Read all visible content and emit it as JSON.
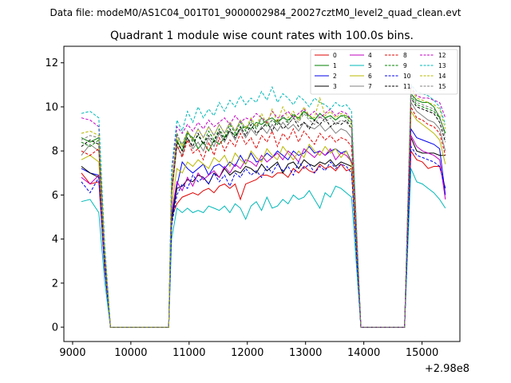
{
  "chart_data": {
    "type": "line",
    "suptitle": "Data file: modeM0/AS1C04_001T01_9000002984_20027cztM0_level2_quad_clean.evt",
    "title": "Quadrant 1 module wise count rates with 100.0s bins.",
    "xlabel": "",
    "ylabel": "",
    "xlim": [
      8850,
      15650
    ],
    "ylim": [
      -0.65,
      12.75
    ],
    "x_offset_label": "+2.98e8",
    "x_ticks": [
      9000,
      10000,
      11000,
      12000,
      13000,
      14000,
      15000
    ],
    "x_tick_labels": [
      "9000",
      "10000",
      "11000",
      "12000",
      "13000",
      "14000",
      "15000"
    ],
    "y_ticks": [
      0,
      2,
      4,
      6,
      8,
      10,
      12
    ],
    "y_tick_labels": [
      "0",
      "2",
      "4",
      "6",
      "8",
      "10",
      "12"
    ],
    "legend_position": "top-right",
    "segments": [
      {
        "start": 9150,
        "end": 9550,
        "rise_to": null
      },
      {
        "start": 10700,
        "end": 13850,
        "rise_to": null
      },
      {
        "start": 14750,
        "end": 15400,
        "rise_to": null
      }
    ],
    "gaps": [
      [
        9650,
        10650
      ],
      [
        13950,
        14700
      ]
    ],
    "series": [
      {
        "name": "0",
        "color": "#e00000",
        "dash": "solid",
        "seg1": [
          7.0,
          6.5,
          6.6
        ],
        "seg2": [
          5.0,
          5.6,
          5.9,
          6.0,
          6.1,
          6.0,
          6.2,
          6.3,
          6.1,
          6.4,
          6.5,
          6.3,
          6.5,
          5.8,
          6.5,
          6.6,
          6.7,
          6.9,
          6.9,
          6.8,
          7.0,
          7.0,
          6.8,
          7.2,
          7.0,
          7.3,
          7.1,
          7.0,
          7.4,
          7.2,
          7.3,
          7.1,
          7.4,
          7.1,
          7.2
        ],
        "seg3": [
          8.0,
          7.6,
          7.5,
          7.2,
          7.3,
          7.3,
          6.3
        ]
      },
      {
        "name": "1",
        "color": "#008000",
        "dash": "solid",
        "seg1": [
          8.6,
          8.4,
          8.6
        ],
        "seg2": [
          6.5,
          8.5,
          8.0,
          8.8,
          8.6,
          8.1,
          8.4,
          8.0,
          8.5,
          8.3,
          8.6,
          8.9,
          8.7,
          9.0,
          9.1,
          9.0,
          9.3,
          9.2,
          9.4,
          9.5,
          9.3,
          9.5,
          9.4,
          9.6,
          9.5,
          9.8,
          9.6,
          9.4,
          9.7,
          9.5,
          9.6,
          9.4,
          9.6,
          9.6,
          9.4
        ],
        "seg3": [
          10.6,
          10.3,
          10.2,
          10.2,
          10.0,
          9.5,
          8.8
        ]
      },
      {
        "name": "2",
        "color": "#0000ee",
        "dash": "solid",
        "seg1": [
          7.2,
          7.0,
          6.9
        ],
        "seg2": [
          5.0,
          6.4,
          7.5,
          7.2,
          7.0,
          7.2,
          7.4,
          6.9,
          7.3,
          7.4,
          7.2,
          7.5,
          7.3,
          7.8,
          7.4,
          7.9,
          7.5,
          7.6,
          7.9,
          7.7,
          8.0,
          7.8,
          7.6,
          8.0,
          7.8,
          7.9,
          8.2,
          7.9,
          8.0,
          7.8,
          8.0,
          8.1,
          7.9,
          8.0,
          7.5
        ],
        "seg3": [
          9.0,
          8.6,
          8.5,
          8.4,
          8.3,
          8.1,
          6.0
        ]
      },
      {
        "name": "3",
        "color": "#000000",
        "dash": "solid",
        "seg1": [
          7.3,
          7.0,
          6.8
        ],
        "seg2": [
          4.8,
          6.3,
          6.4,
          6.7,
          6.6,
          6.9,
          6.8,
          6.5,
          7.0,
          6.8,
          7.2,
          6.9,
          7.1,
          7.0,
          7.3,
          7.2,
          7.0,
          7.4,
          7.1,
          7.3,
          7.5,
          7.0,
          7.4,
          7.5,
          7.2,
          7.6,
          7.4,
          7.3,
          7.5,
          7.4,
          7.6,
          7.3,
          7.5,
          7.4,
          7.3
        ],
        "seg3": [
          8.6,
          8.0,
          7.9,
          7.9,
          7.9,
          7.8,
          7.8
        ]
      },
      {
        "name": "4",
        "color": "#c000c0",
        "dash": "solid",
        "seg1": [
          6.8,
          6.5,
          6.9
        ],
        "seg2": [
          5.2,
          6.6,
          6.2,
          6.8,
          6.4,
          7.0,
          6.7,
          6.9,
          7.1,
          6.8,
          7.3,
          7.0,
          7.4,
          7.2,
          7.6,
          7.5,
          7.3,
          7.8,
          7.5,
          7.7,
          7.9,
          7.6,
          8.0,
          7.8,
          7.5,
          8.1,
          7.9,
          7.7,
          8.0,
          7.8,
          8.1,
          7.6,
          7.9,
          7.8,
          7.5
        ],
        "seg3": [
          8.7,
          8.2,
          8.0,
          7.9,
          7.8,
          7.6,
          5.8
        ]
      },
      {
        "name": "5",
        "color": "#00b8b8",
        "dash": "solid",
        "seg1": [
          5.7,
          5.8,
          5.2
        ],
        "seg2": [
          4.0,
          5.4,
          5.2,
          5.4,
          5.2,
          5.3,
          5.2,
          5.5,
          5.4,
          5.3,
          5.5,
          5.2,
          5.6,
          5.4,
          4.9,
          5.5,
          5.7,
          5.3,
          5.9,
          5.4,
          5.5,
          5.8,
          5.6,
          6.0,
          5.8,
          5.9,
          6.2,
          5.8,
          5.4,
          6.1,
          5.9,
          6.4,
          6.3,
          6.1,
          5.9
        ],
        "seg3": [
          7.2,
          6.6,
          6.5,
          6.3,
          6.1,
          5.8,
          5.4
        ]
      },
      {
        "name": "6",
        "color": "#b8b800",
        "dash": "solid",
        "seg1": [
          7.6,
          7.8,
          7.5
        ],
        "seg2": [
          5.5,
          7.2,
          7.0,
          7.5,
          7.3,
          7.6,
          7.4,
          7.2,
          7.7,
          7.5,
          7.8,
          7.3,
          7.9,
          7.6,
          7.4,
          8.0,
          7.7,
          7.5,
          8.1,
          7.8,
          7.6,
          8.2,
          7.9,
          7.6,
          8.0,
          7.7,
          8.3,
          8.0,
          7.8,
          8.2,
          7.9,
          8.1,
          7.7,
          8.0,
          7.4
        ],
        "seg3": [
          9.8,
          9.4,
          9.2,
          9.0,
          8.8,
          8.5,
          7.4
        ]
      },
      {
        "name": "7",
        "color": "#808080",
        "dash": "solid",
        "seg1": [
          7.8,
          8.3,
          8.0
        ],
        "seg2": [
          6.0,
          8.2,
          7.8,
          8.6,
          8.1,
          8.4,
          8.0,
          8.6,
          8.2,
          8.8,
          8.4,
          8.9,
          8.5,
          9.0,
          8.6,
          9.0,
          8.7,
          9.1,
          8.8,
          9.2,
          8.9,
          9.3,
          9.0,
          9.2,
          8.9,
          9.3,
          9.1,
          9.0,
          9.2,
          8.9,
          9.1,
          8.8,
          9.0,
          8.9,
          8.6
        ],
        "seg3": [
          10.2,
          9.8,
          9.6,
          9.4,
          9.3,
          9.0,
          8.0
        ]
      },
      {
        "name": "8",
        "color": "#e00000",
        "dash": "dashed",
        "seg1": [
          8.0,
          7.8,
          8.1
        ],
        "seg2": [
          6.0,
          8.3,
          7.7,
          8.5,
          7.9,
          8.1,
          7.6,
          8.4,
          7.8,
          8.6,
          8.0,
          8.5,
          8.2,
          8.8,
          8.3,
          8.6,
          8.1,
          8.7,
          8.4,
          8.9,
          8.2,
          8.8,
          8.5,
          9.0,
          8.4,
          8.9,
          8.6,
          8.3,
          8.8,
          8.5,
          8.7,
          8.4,
          8.6,
          8.5,
          8.2
        ],
        "seg3": [
          10.0,
          9.5,
          9.4,
          9.2,
          9.1,
          8.8,
          7.8
        ]
      },
      {
        "name": "9",
        "color": "#008000",
        "dash": "dashed",
        "seg1": [
          8.4,
          8.2,
          8.5
        ],
        "seg2": [
          6.3,
          8.8,
          8.2,
          8.9,
          8.4,
          8.7,
          8.3,
          8.9,
          8.5,
          9.0,
          8.6,
          9.2,
          8.8,
          9.3,
          8.9,
          9.4,
          9.0,
          9.5,
          9.1,
          9.4,
          9.2,
          9.6,
          9.3,
          9.7,
          9.4,
          9.8,
          9.5,
          9.4,
          9.7,
          9.5,
          9.6,
          9.4,
          9.6,
          9.5,
          9.2
        ],
        "seg3": [
          10.5,
          10.1,
          10.0,
          9.9,
          9.8,
          9.5,
          8.8
        ]
      },
      {
        "name": "10",
        "color": "#0000ee",
        "dash": "dashed",
        "seg1": [
          6.6,
          6.1,
          6.8
        ],
        "seg2": [
          4.6,
          6.0,
          6.5,
          6.3,
          6.9,
          6.6,
          6.8,
          6.5,
          7.0,
          6.6,
          6.9,
          6.4,
          7.0,
          6.8,
          7.2,
          6.9,
          7.1,
          6.8,
          7.3,
          7.0,
          7.4,
          7.1,
          7.3,
          6.9,
          7.5,
          7.2,
          7.4,
          7.0,
          7.3,
          7.1,
          7.5,
          7.2,
          7.4,
          7.3,
          7.0
        ],
        "seg3": [
          8.2,
          7.8,
          7.7,
          7.6,
          7.5,
          7.3,
          6.3
        ]
      },
      {
        "name": "11",
        "color": "#000000",
        "dash": "dashed",
        "seg1": [
          8.2,
          8.5,
          8.3
        ],
        "seg2": [
          6.2,
          8.4,
          8.0,
          8.6,
          8.2,
          8.8,
          8.3,
          8.7,
          8.4,
          8.9,
          8.5,
          9.0,
          8.6,
          9.1,
          8.7,
          9.2,
          8.8,
          9.0,
          9.3,
          8.9,
          9.4,
          9.0,
          9.2,
          9.5,
          9.1,
          9.3,
          9.0,
          9.4,
          9.2,
          9.5,
          9.1,
          9.3,
          9.2,
          9.4,
          9.0
        ],
        "seg3": [
          10.4,
          10.0,
          9.9,
          9.8,
          9.7,
          9.3,
          8.4
        ]
      },
      {
        "name": "12",
        "color": "#c000c0",
        "dash": "dashed",
        "seg1": [
          9.5,
          9.4,
          9.1
        ],
        "seg2": [
          7.0,
          9.1,
          8.8,
          9.2,
          8.9,
          9.3,
          9.0,
          9.4,
          9.1,
          9.3,
          9.5,
          9.2,
          9.6,
          9.3,
          9.5,
          9.4,
          9.7,
          9.5,
          9.3,
          9.8,
          9.5,
          9.6,
          9.8,
          9.5,
          9.7,
          9.9,
          9.6,
          9.8,
          9.5,
          9.7,
          9.9,
          9.6,
          9.8,
          9.7,
          9.4
        ],
        "seg3": [
          10.9,
          10.5,
          10.4,
          10.4,
          10.3,
          10.2,
          9.5
        ]
      },
      {
        "name": "13",
        "color": "#00b8b8",
        "dash": "dashed",
        "seg1": [
          9.7,
          9.8,
          9.5
        ],
        "seg2": [
          7.2,
          9.4,
          8.9,
          9.8,
          9.3,
          10.0,
          9.5,
          9.9,
          9.6,
          10.2,
          9.8,
          10.3,
          10.0,
          10.5,
          10.1,
          10.4,
          10.2,
          10.7,
          10.3,
          10.9,
          10.2,
          10.6,
          10.4,
          10.1,
          10.5,
          10.3,
          10.0,
          10.4,
          10.2,
          10.1,
          9.9,
          10.2,
          10.0,
          10.1,
          9.8
        ],
        "seg3": [
          11.0,
          10.7,
          10.6,
          10.5,
          10.3,
          10.0,
          9.2
        ]
      },
      {
        "name": "14",
        "color": "#b8b800",
        "dash": "dashed",
        "seg1": [
          8.8,
          8.9,
          8.7
        ],
        "seg2": [
          6.5,
          8.6,
          8.2,
          8.9,
          8.5,
          9.0,
          8.6,
          9.1,
          8.7,
          9.2,
          8.8,
          9.3,
          8.9,
          9.4,
          9.0,
          9.5,
          9.1,
          9.7,
          9.2,
          9.9,
          9.3,
          10.0,
          9.5,
          9.8,
          9.4,
          10.0,
          9.6,
          9.5,
          10.4,
          9.6,
          9.8,
          9.5,
          9.7,
          9.6,
          9.3
        ],
        "seg3": [
          10.8,
          10.4,
          10.3,
          10.2,
          10.1,
          9.9,
          9.0
        ]
      },
      {
        "name": "15",
        "color": "#808080",
        "dash": "dashed",
        "seg1": [
          8.5,
          8.7,
          8.6
        ],
        "seg2": [
          6.3,
          8.7,
          8.3,
          8.9,
          8.5,
          9.0,
          8.6,
          9.1,
          8.7,
          9.2,
          8.8,
          9.3,
          8.9,
          9.4,
          9.0,
          9.3,
          9.1,
          9.5,
          9.2,
          9.4,
          9.3,
          9.6,
          9.2,
          9.5,
          9.3,
          9.7,
          9.4,
          9.2,
          9.6,
          9.3,
          9.5,
          9.2,
          9.4,
          9.3,
          9.0
        ],
        "seg3": [
          10.6,
          10.2,
          10.1,
          10.0,
          9.9,
          9.6,
          8.6
        ]
      }
    ]
  }
}
